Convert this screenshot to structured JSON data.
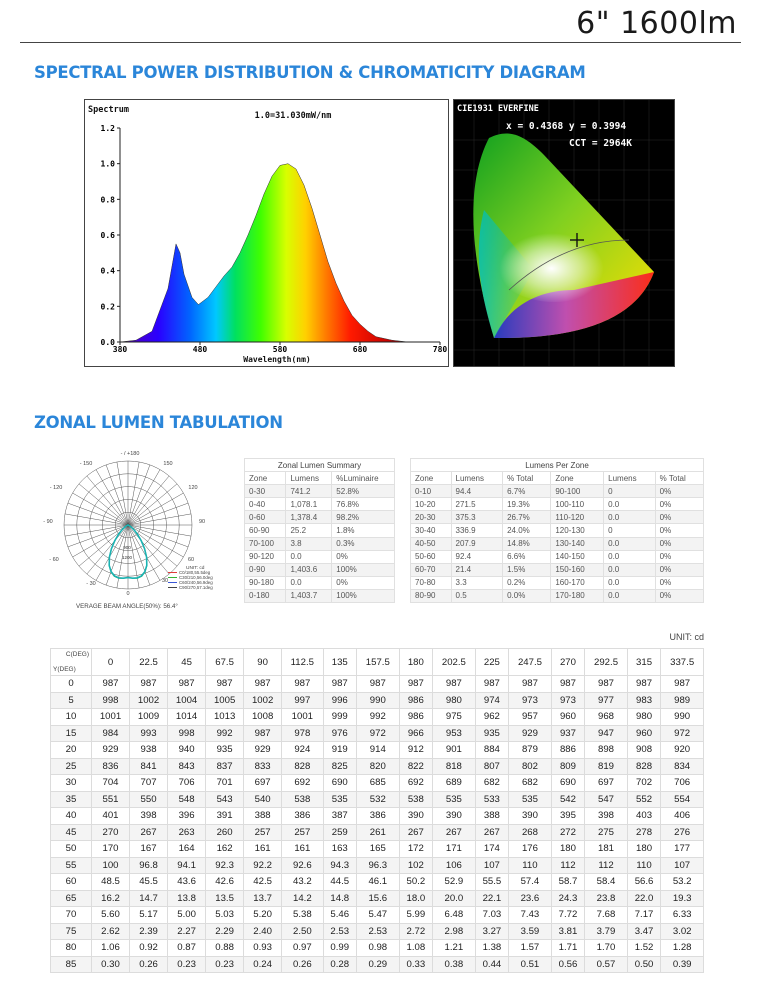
{
  "header": {
    "title": "6\" 1600lm"
  },
  "sections": {
    "spectral": "SPECTRAL POWER DISTRIBUTION &  CHROMATICITY DIAGRAM",
    "zonal": "ZONAL LUMEN TABULATION"
  },
  "spectrum": {
    "label": "Spectrum",
    "scale": "1.0=31.030mW/nm",
    "xlabel": "Wavelength(nm)",
    "yticks": [
      "1.2",
      "1.0",
      "0.8",
      "0.6",
      "0.4",
      "0.2",
      "0.0"
    ],
    "xticks": [
      "380",
      "480",
      "580",
      "680",
      "780"
    ],
    "curve": [
      [
        380,
        0.0
      ],
      [
        400,
        0.01
      ],
      [
        420,
        0.06
      ],
      [
        440,
        0.3
      ],
      [
        450,
        0.55
      ],
      [
        455,
        0.5
      ],
      [
        460,
        0.38
      ],
      [
        470,
        0.25
      ],
      [
        478,
        0.21
      ],
      [
        490,
        0.25
      ],
      [
        500,
        0.31
      ],
      [
        510,
        0.37
      ],
      [
        520,
        0.42
      ],
      [
        530,
        0.5
      ],
      [
        540,
        0.6
      ],
      [
        550,
        0.71
      ],
      [
        560,
        0.83
      ],
      [
        570,
        0.93
      ],
      [
        580,
        0.99
      ],
      [
        590,
        1.0
      ],
      [
        600,
        0.97
      ],
      [
        610,
        0.88
      ],
      [
        620,
        0.75
      ],
      [
        630,
        0.6
      ],
      [
        640,
        0.45
      ],
      [
        650,
        0.33
      ],
      [
        660,
        0.23
      ],
      [
        670,
        0.15
      ],
      [
        680,
        0.1
      ],
      [
        690,
        0.06
      ],
      [
        700,
        0.03
      ],
      [
        720,
        0.01
      ],
      [
        740,
        0.0
      ],
      [
        780,
        0.0
      ]
    ]
  },
  "cie": {
    "title": "CIE1931 EVERFINE",
    "xy": "x = 0.4368 y = 0.3994",
    "cct": "CCT = 2964K"
  },
  "polar": {
    "labels": [
      "- / +180",
      "- 150",
      "150",
      "- 120",
      "120",
      "- 90",
      "90",
      "- 60",
      "60",
      "- 30",
      "30",
      "0"
    ],
    "rings": [
      "1200",
      "900"
    ],
    "legend_title": "UNIT: cd",
    "legend": [
      {
        "label": "C0/180,55.5deg",
        "color": "#e23b3b"
      },
      {
        "label": "C30/210,56.0deg",
        "color": "#33b233"
      },
      {
        "label": "C60/240,56.9deg",
        "color": "#3a57d6"
      },
      {
        "label": "C90/270,57.1deg",
        "color": "#444444"
      }
    ],
    "beam": "VERAGE BEAM ANGLE(50%): 56.4°"
  },
  "zonal_summary": {
    "title": "Zonal Lumen Summary",
    "headers": [
      "Zone",
      "Lumens",
      "%Luminaire"
    ],
    "rows": [
      [
        "0-30",
        "741.2",
        "52.8%"
      ],
      [
        "0-40",
        "1,078.1",
        "76.8%"
      ],
      [
        "0-60",
        "1,378.4",
        "98.2%"
      ],
      [
        "60-90",
        "25.2",
        "1.8%"
      ],
      [
        "70-100",
        "3.8",
        "0.3%"
      ],
      [
        "90-120",
        "0.0",
        "0%"
      ],
      [
        "0-90",
        "1,403.6",
        "100%"
      ],
      [
        "90-180",
        "0.0",
        "0%"
      ],
      [
        "0-180",
        "1,403.7",
        "100%"
      ]
    ]
  },
  "lumens_per_zone": {
    "title": "Lumens Per Zone",
    "headers": [
      "Zone",
      "Lumens",
      "% Total",
      "Zone",
      "Lumens",
      "% Total"
    ],
    "rows": [
      [
        "0-10",
        "94.4",
        "6.7%",
        "90-100",
        "0",
        "0%"
      ],
      [
        "10-20",
        "271.5",
        "19.3%",
        "100-110",
        "0.0",
        "0%"
      ],
      [
        "20-30",
        "375.3",
        "26.7%",
        "110-120",
        "0.0",
        "0%"
      ],
      [
        "30-40",
        "336.9",
        "24.0%",
        "120-130",
        "0",
        "0%"
      ],
      [
        "40-50",
        "207.9",
        "14.8%",
        "130-140",
        "0.0",
        "0%"
      ],
      [
        "50-60",
        "92.4",
        "6.6%",
        "140-150",
        "0.0",
        "0%"
      ],
      [
        "60-70",
        "21.4",
        "1.5%",
        "150-160",
        "0.0",
        "0%"
      ],
      [
        "70-80",
        "3.3",
        "0.2%",
        "160-170",
        "0.0",
        "0%"
      ],
      [
        "80-90",
        "0.5",
        "0.0%",
        "170-180",
        "0.0",
        "0%"
      ]
    ]
  },
  "candela": {
    "unit": "UNIT: cd",
    "corner_c": "C(DEG)",
    "corner_y": "Y(DEG)",
    "c_angles": [
      "0",
      "22.5",
      "45",
      "67.5",
      "90",
      "112.5",
      "135",
      "157.5",
      "180",
      "202.5",
      "225",
      "247.5",
      "270",
      "292.5",
      "315",
      "337.5"
    ],
    "rows": [
      [
        "0",
        "987",
        "987",
        "987",
        "987",
        "987",
        "987",
        "987",
        "987",
        "987",
        "987",
        "987",
        "987",
        "987",
        "987",
        "987",
        "987"
      ],
      [
        "5",
        "998",
        "1002",
        "1004",
        "1005",
        "1002",
        "997",
        "996",
        "990",
        "986",
        "980",
        "974",
        "973",
        "973",
        "977",
        "983",
        "989"
      ],
      [
        "10",
        "1001",
        "1009",
        "1014",
        "1013",
        "1008",
        "1001",
        "999",
        "992",
        "986",
        "975",
        "962",
        "957",
        "960",
        "968",
        "980",
        "990"
      ],
      [
        "15",
        "984",
        "993",
        "998",
        "992",
        "987",
        "978",
        "976",
        "972",
        "966",
        "953",
        "935",
        "929",
        "937",
        "947",
        "960",
        "972"
      ],
      [
        "20",
        "929",
        "938",
        "940",
        "935",
        "929",
        "924",
        "919",
        "914",
        "912",
        "901",
        "884",
        "879",
        "886",
        "898",
        "908",
        "920"
      ],
      [
        "25",
        "836",
        "841",
        "843",
        "837",
        "833",
        "828",
        "825",
        "820",
        "822",
        "818",
        "807",
        "802",
        "809",
        "819",
        "828",
        "834"
      ],
      [
        "30",
        "704",
        "707",
        "706",
        "701",
        "697",
        "692",
        "690",
        "685",
        "692",
        "689",
        "682",
        "682",
        "690",
        "697",
        "702",
        "706"
      ],
      [
        "35",
        "551",
        "550",
        "548",
        "543",
        "540",
        "538",
        "535",
        "532",
        "538",
        "535",
        "533",
        "535",
        "542",
        "547",
        "552",
        "554"
      ],
      [
        "40",
        "401",
        "398",
        "396",
        "391",
        "388",
        "386",
        "387",
        "386",
        "390",
        "390",
        "388",
        "390",
        "395",
        "398",
        "403",
        "406"
      ],
      [
        "45",
        "270",
        "267",
        "263",
        "260",
        "257",
        "257",
        "259",
        "261",
        "267",
        "267",
        "267",
        "268",
        "272",
        "275",
        "278",
        "276"
      ],
      [
        "50",
        "170",
        "167",
        "164",
        "162",
        "161",
        "161",
        "163",
        "165",
        "172",
        "171",
        "174",
        "176",
        "180",
        "181",
        "180",
        "177"
      ],
      [
        "55",
        "100",
        "96.8",
        "94.1",
        "92.3",
        "92.2",
        "92.6",
        "94.3",
        "96.3",
        "102",
        "106",
        "107",
        "110",
        "112",
        "112",
        "110",
        "107"
      ],
      [
        "60",
        "48.5",
        "45.5",
        "43.6",
        "42.6",
        "42.5",
        "43.2",
        "44.5",
        "46.1",
        "50.2",
        "52.9",
        "55.5",
        "57.4",
        "58.7",
        "58.4",
        "56.6",
        "53.2"
      ],
      [
        "65",
        "16.2",
        "14.7",
        "13.8",
        "13.5",
        "13.7",
        "14.2",
        "14.8",
        "15.6",
        "18.0",
        "20.0",
        "22.1",
        "23.6",
        "24.3",
        "23.8",
        "22.0",
        "19.3"
      ],
      [
        "70",
        "5.60",
        "5.17",
        "5.00",
        "5.03",
        "5.20",
        "5.38",
        "5.46",
        "5.47",
        "5.99",
        "6.48",
        "7.03",
        "7.43",
        "7.72",
        "7.68",
        "7.17",
        "6.33"
      ],
      [
        "75",
        "2.62",
        "2.39",
        "2.27",
        "2.29",
        "2.40",
        "2.50",
        "2.53",
        "2.53",
        "2.72",
        "2.98",
        "3.27",
        "3.59",
        "3.81",
        "3.79",
        "3.47",
        "3.02"
      ],
      [
        "80",
        "1.06",
        "0.92",
        "0.87",
        "0.88",
        "0.93",
        "0.97",
        "0.99",
        "0.98",
        "1.08",
        "1.21",
        "1.38",
        "1.57",
        "1.71",
        "1.70",
        "1.52",
        "1.28"
      ],
      [
        "85",
        "0.30",
        "0.26",
        "0.23",
        "0.23",
        "0.24",
        "0.26",
        "0.28",
        "0.29",
        "0.33",
        "0.38",
        "0.44",
        "0.51",
        "0.56",
        "0.57",
        "0.50",
        "0.39"
      ]
    ]
  }
}
